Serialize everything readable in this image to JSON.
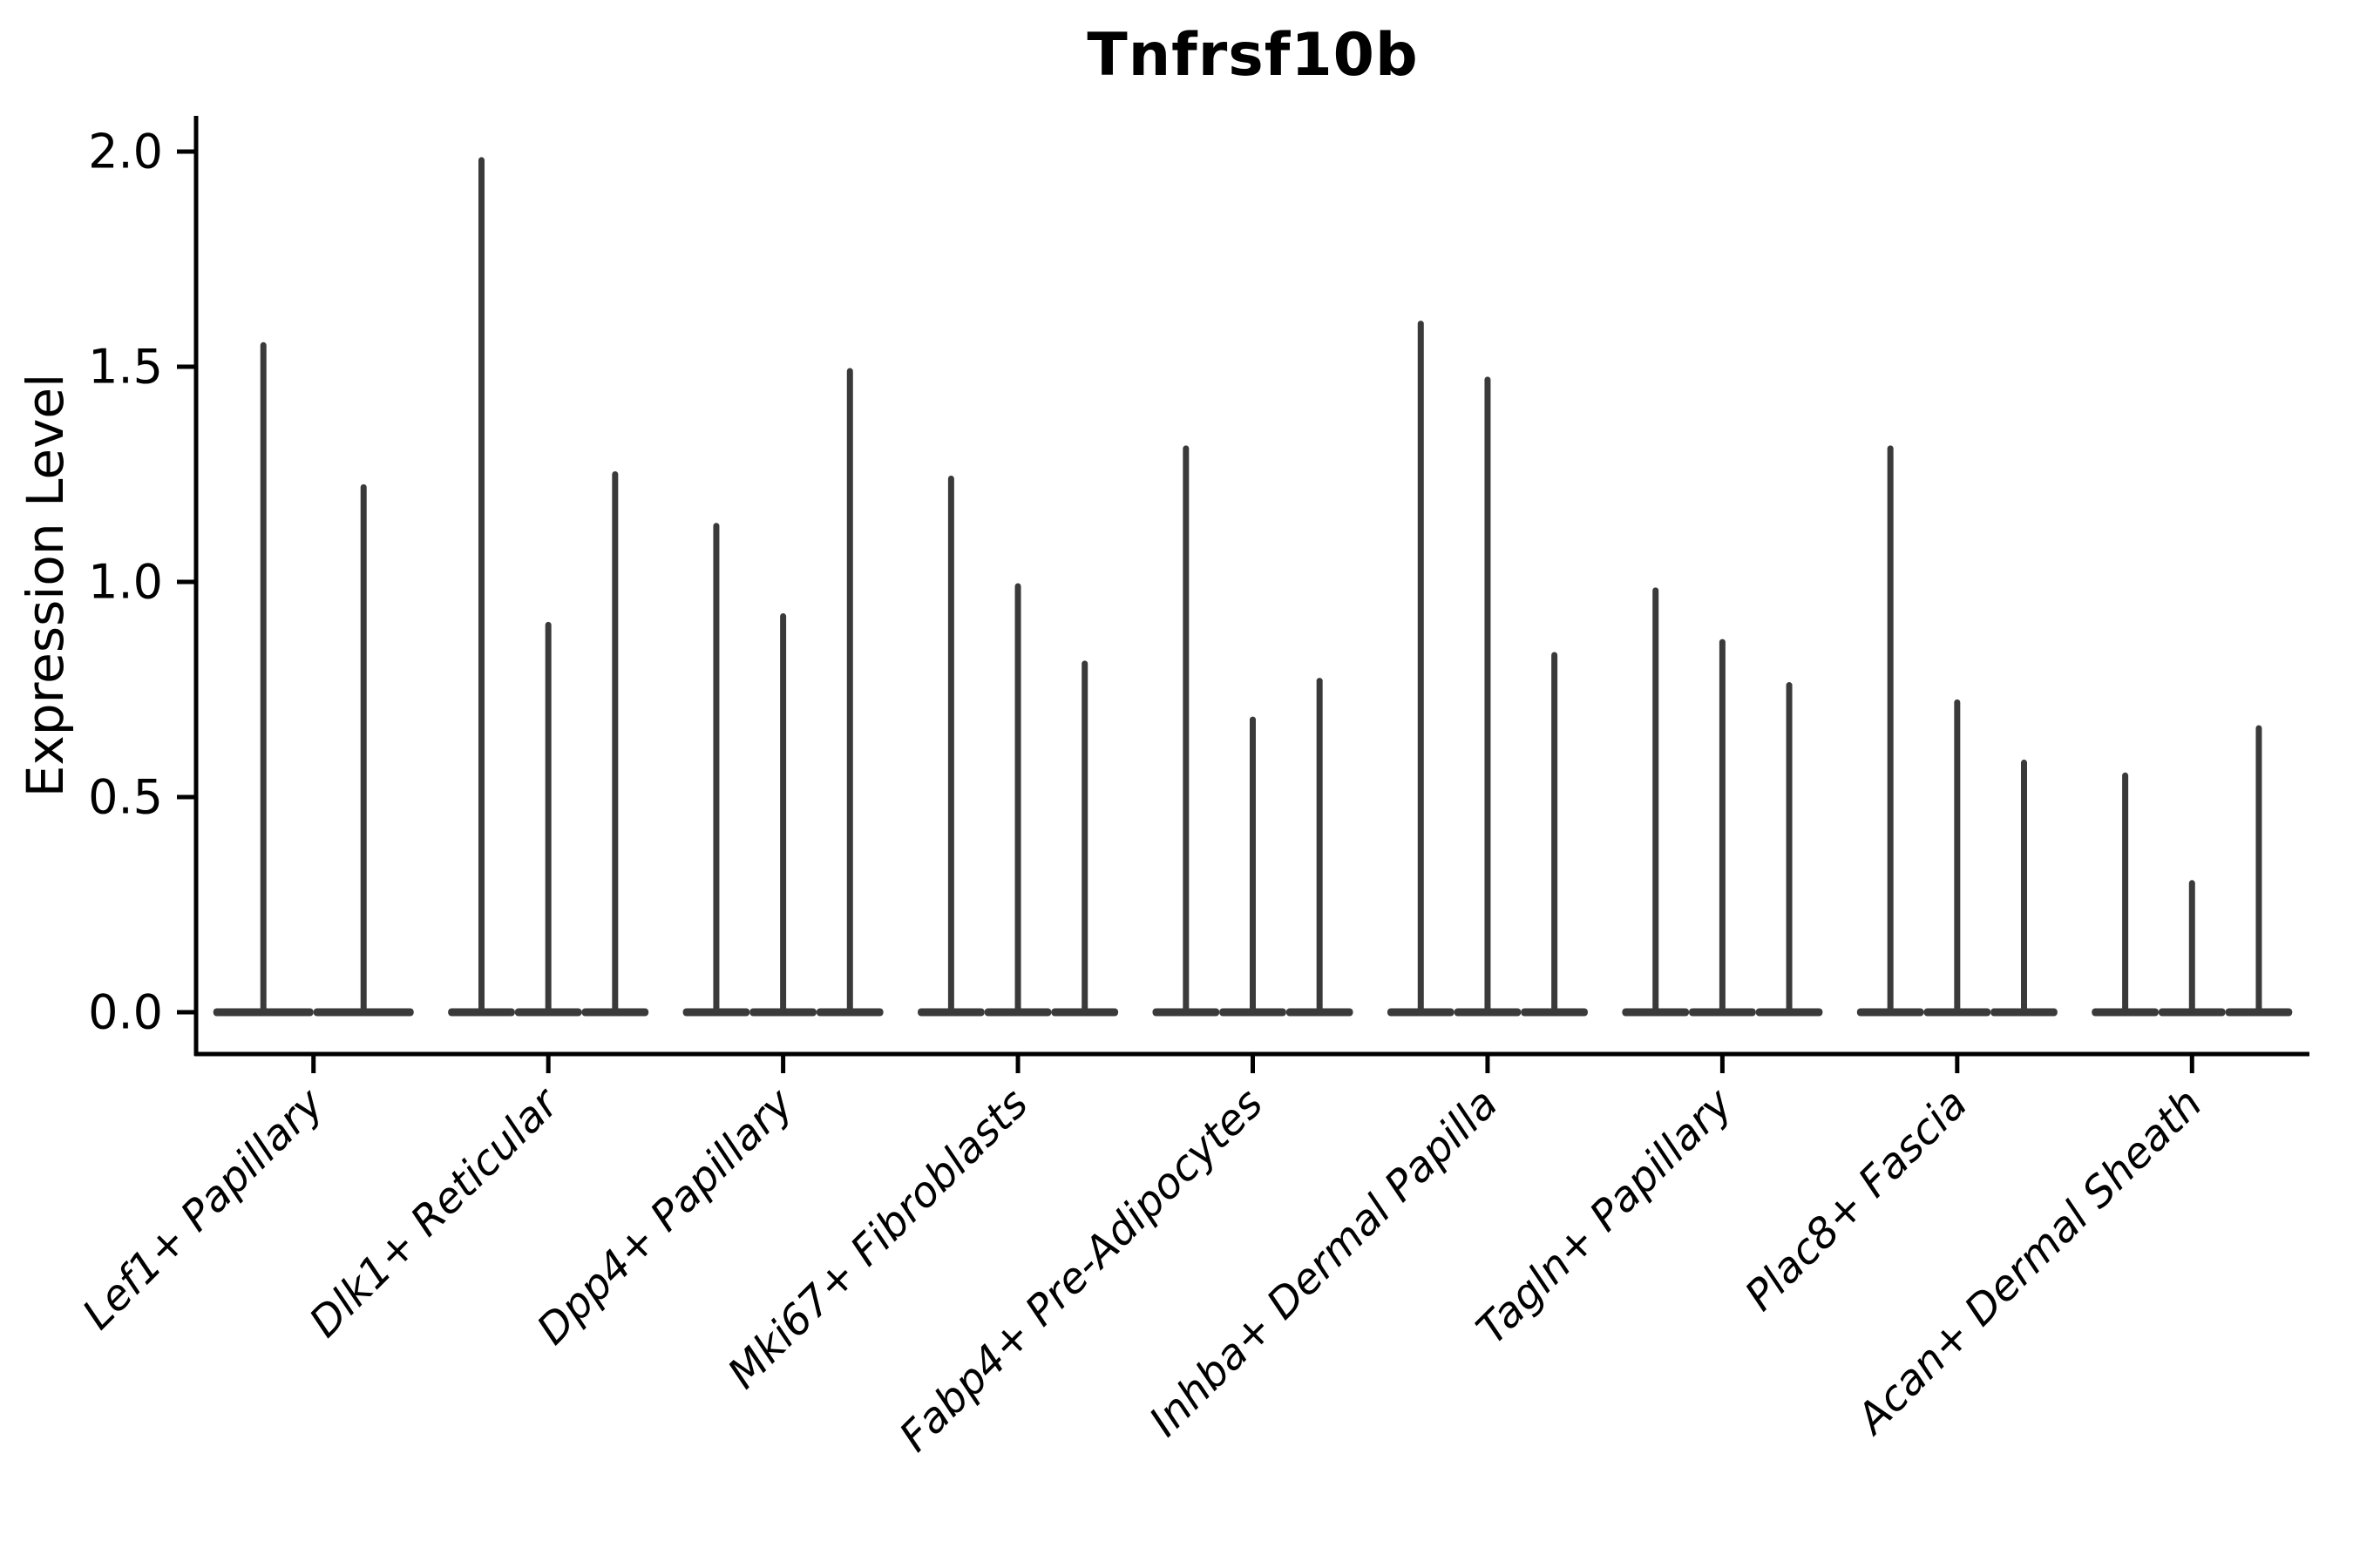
{
  "title": "Tnfrsf10b",
  "ylabel": "Expression Level",
  "chart_data": {
    "type": "violin",
    "title": "Tnfrsf10b",
    "xlabel": "",
    "ylabel": "Expression Level",
    "ylim": [
      0.0,
      2.08
    ],
    "yticks": [
      0.0,
      0.5,
      1.0,
      1.5,
      2.0
    ],
    "grid": false,
    "legend": "none",
    "description": "Single-cell expression violin plot; each category shows 2-3 extremely thin violins (spikes) rising from a flat base at 0",
    "categories": [
      "Lef1+ Papillary",
      "Dlk1+ Reticular",
      "Dpp4+ Papillary",
      "Mki67+ Fibroblasts",
      "Fabp4+ Pre-Adipocytes",
      "Inhba+ Dermal Papilla",
      "Tagln+ Papillary",
      "Plac8+ Fascia",
      "Acan+ Dermal Sheath"
    ],
    "groups": [
      {
        "category": "Lef1+ Papillary",
        "violin_max_values": [
          1.55,
          1.22
        ]
      },
      {
        "category": "Dlk1+ Reticular",
        "violin_max_values": [
          1.98,
          0.9,
          1.25
        ]
      },
      {
        "category": "Dpp4+ Papillary",
        "violin_max_values": [
          1.13,
          0.92,
          1.49
        ]
      },
      {
        "category": "Mki67+ Fibroblasts",
        "violin_max_values": [
          1.24,
          0.99,
          0.81
        ]
      },
      {
        "category": "Fabp4+ Pre-Adipocytes",
        "violin_max_values": [
          1.31,
          0.68,
          0.77
        ]
      },
      {
        "category": "Inhba+ Dermal Papilla",
        "violin_max_values": [
          1.6,
          1.47,
          0.83
        ]
      },
      {
        "category": "Tagln+ Papillary",
        "violin_max_values": [
          0.98,
          0.86,
          0.76
        ]
      },
      {
        "category": "Plac8+ Fascia",
        "violin_max_values": [
          1.31,
          0.72,
          0.58
        ]
      },
      {
        "category": "Acan+ Dermal Sheath",
        "violin_max_values": [
          0.55,
          0.3,
          0.66
        ]
      }
    ],
    "colors": {
      "violin": "#3a3a3a",
      "axis": "#000000",
      "text": "#000000",
      "background": "#ffffff"
    }
  }
}
